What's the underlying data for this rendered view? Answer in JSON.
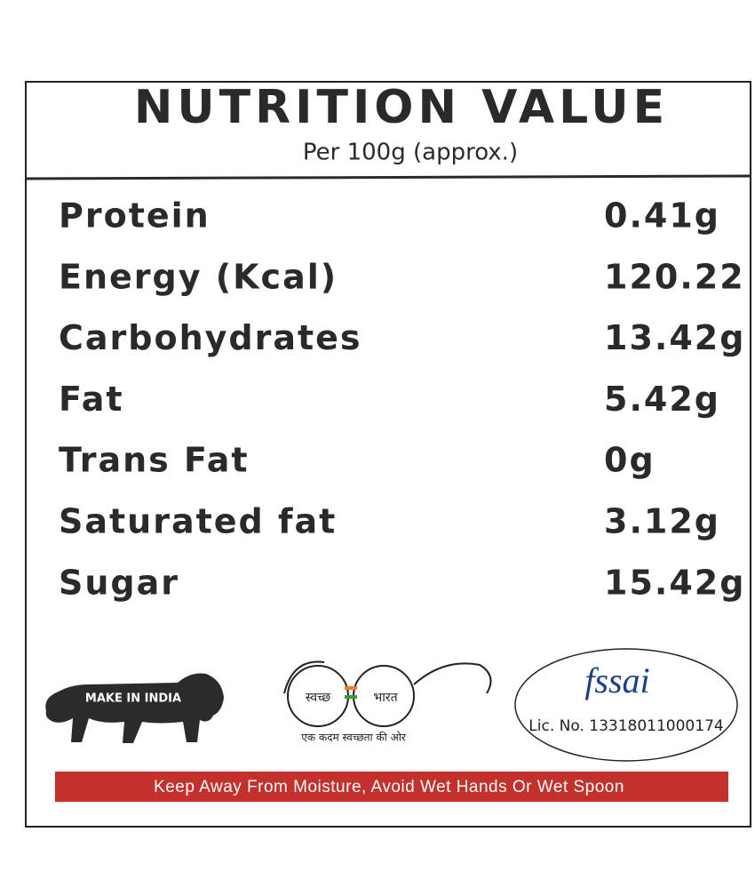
{
  "header": {
    "title": "NUTRITION VALUE",
    "subtitle": "Per 100g (approx.)"
  },
  "table": {
    "rows": [
      {
        "name": "Protein",
        "value": "0.41g"
      },
      {
        "name": "Energy (Kcal)",
        "value": "120.22"
      },
      {
        "name": "Carbohydrates",
        "value": "13.42g"
      },
      {
        "name": "Fat",
        "value": "5.42g"
      },
      {
        "name": "Trans Fat",
        "value": "0g"
      },
      {
        "name": "Saturated  fat",
        "value": "3.12g"
      },
      {
        "name": "Sugar",
        "value": "15.42g"
      }
    ]
  },
  "logos": {
    "make_in_india": "MAKE IN INDIA",
    "swachh_left": "स्वच्छ",
    "swachh_right": "भारत",
    "swachh_tagline": "एक कदम स्वच्छता की ओर",
    "fssai": "fssai",
    "license": "Lic. No. 13318011000174"
  },
  "banner": "Keep Away From Moisture, Avoid Wet Hands Or Wet Spoon"
}
